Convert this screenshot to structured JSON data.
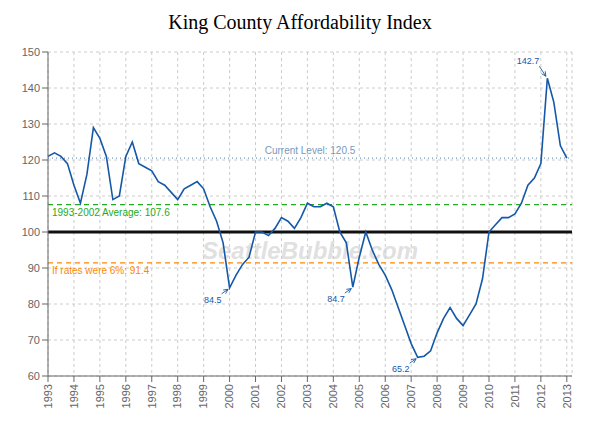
{
  "chart_data": {
    "type": "line",
    "title": "King County Affordability Index",
    "color": "#1558a7",
    "grid": true,
    "xlim": [
      1993.0,
      2013.2
    ],
    "ylim": [
      60,
      150
    ],
    "xticks": [
      1993,
      1994,
      1995,
      1996,
      1997,
      1998,
      1999,
      2000,
      2001,
      2002,
      2003,
      2004,
      2005,
      2006,
      2007,
      2008,
      2009,
      2010,
      2011,
      2012,
      2013
    ],
    "yticks": [
      60,
      70,
      80,
      90,
      100,
      110,
      120,
      130,
      140,
      150
    ],
    "x": [
      1993.0,
      1993.25,
      1993.5,
      1993.75,
      1994.0,
      1994.25,
      1994.5,
      1994.75,
      1995.0,
      1995.25,
      1995.5,
      1995.75,
      1996.0,
      1996.25,
      1996.5,
      1996.75,
      1997.0,
      1997.25,
      1997.5,
      1997.75,
      1998.0,
      1998.25,
      1998.5,
      1998.75,
      1999.0,
      1999.25,
      1999.5,
      1999.75,
      2000.0,
      2000.25,
      2000.5,
      2000.75,
      2001.0,
      2001.25,
      2001.5,
      2001.75,
      2002.0,
      2002.25,
      2002.5,
      2002.75,
      2003.0,
      2003.25,
      2003.5,
      2003.75,
      2004.0,
      2004.25,
      2004.5,
      2004.75,
      2005.0,
      2005.25,
      2005.5,
      2005.75,
      2006.0,
      2006.25,
      2006.5,
      2006.75,
      2007.0,
      2007.25,
      2007.5,
      2007.75,
      2008.0,
      2008.25,
      2008.5,
      2008.75,
      2009.0,
      2009.25,
      2009.5,
      2009.75,
      2010.0,
      2010.25,
      2010.5,
      2010.75,
      2011.0,
      2011.25,
      2011.5,
      2011.75,
      2012.0,
      2012.25,
      2012.5,
      2012.75,
      2013.0
    ],
    "values": [
      121,
      122,
      121,
      119,
      113,
      108,
      116,
      129,
      126,
      121,
      109,
      110,
      121,
      125,
      119,
      118,
      117,
      114,
      113,
      111,
      109,
      112,
      113,
      114,
      112,
      107,
      103,
      97,
      84.5,
      88,
      91,
      93,
      100,
      100,
      99,
      101,
      104,
      103,
      101,
      104,
      108,
      107,
      107,
      108,
      107,
      100,
      97,
      84.7,
      93,
      100,
      95,
      91,
      88,
      84,
      79,
      74,
      69,
      65.2,
      65.5,
      67,
      72,
      76,
      79,
      76,
      74,
      77,
      80,
      87,
      100,
      102,
      104,
      104,
      105,
      108,
      113,
      115,
      119,
      142.7,
      136,
      124,
      120.5
    ],
    "reference_lines": [
      {
        "value": 100.0,
        "color": "#111111",
        "line_style": "solid"
      },
      {
        "value": 120.5,
        "color": "#7799bb",
        "line_style": "dotted",
        "label": "Current Level: 120.5"
      },
      {
        "value": 107.6,
        "color": "#22aa22",
        "line_style": "dashed",
        "label": "1993-2002 Average: 107.6"
      },
      {
        "value": 91.4,
        "color": "#ff8800",
        "line_style": "dashed",
        "label": "If rates were 6%: 91.4"
      }
    ],
    "annotations": [
      {
        "text": "142.7",
        "x": 2012.25,
        "y": 142.7
      },
      {
        "text": "84.5",
        "x": 2000.0,
        "y": 84.5
      },
      {
        "text": "84.7",
        "x": 2004.75,
        "y": 84.7
      },
      {
        "text": "65.2",
        "x": 2007.25,
        "y": 65.2
      }
    ],
    "watermark": "SeattleBubble.com"
  }
}
